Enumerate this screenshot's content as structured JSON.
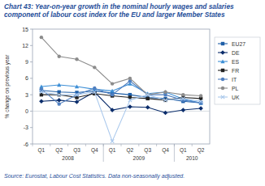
{
  "chart_data": {
    "type": "line",
    "title": "Chart 43: Year-on-year growth in the nominal hourly wages and salaries component of labour cost index for the EU and larger Member States",
    "source": "Source: Eurostat, Labour Cost Statistics. Data non-seasonally adjusted.",
    "y_label": "% change on previous year",
    "categories": [
      "Q1",
      "Q2",
      "Q3",
      "Q4",
      "Q1",
      "Q2",
      "Q3",
      "Q4",
      "Q1",
      "Q2"
    ],
    "x_group_labels": [
      "2008",
      "2009",
      "2010"
    ],
    "ylim": [
      -6,
      15
    ],
    "yticks": [
      -6,
      -3,
      0,
      3,
      6,
      9,
      12,
      15
    ],
    "legend": "right",
    "series": [
      {
        "name": "EU27",
        "color": "#1f5fa8",
        "marker": "square",
        "values": [
          3.8,
          3.5,
          3.4,
          3.7,
          3.3,
          3.0,
          2.5,
          2.3,
          1.8,
          1.5
        ]
      },
      {
        "name": "DE",
        "color": "#0b2d6b",
        "marker": "diamond",
        "values": [
          1.8,
          2.0,
          1.7,
          3.5,
          0.2,
          0.8,
          0.7,
          -0.3,
          0.2,
          0.5
        ]
      },
      {
        "name": "ES",
        "color": "#3d8fd6",
        "marker": "triangle",
        "values": [
          4.5,
          4.8,
          4.5,
          4.0,
          3.7,
          5.0,
          3.2,
          3.5,
          2.2,
          1.5
        ]
      },
      {
        "name": "FR",
        "color": "#222222",
        "marker": "square",
        "values": [
          3.0,
          3.0,
          2.5,
          3.2,
          2.8,
          2.5,
          2.3,
          2.0,
          2.5,
          2.3
        ]
      },
      {
        "name": "IT",
        "color": "#4f7fc0",
        "marker": "circle",
        "values": [
          4.0,
          1.3,
          3.0,
          4.2,
          3.0,
          5.5,
          3.0,
          3.0,
          2.0,
          1.5
        ]
      },
      {
        "name": "PL",
        "color": "#8c8c8c",
        "marker": "circle",
        "values": [
          13.5,
          10.0,
          9.5,
          8.0,
          5.0,
          6.0,
          3.0,
          3.5,
          3.0,
          2.8
        ]
      },
      {
        "name": "UK",
        "color": "#a9c8ec",
        "marker": "cross",
        "values": [
          3.5,
          3.0,
          3.0,
          3.5,
          -5.5,
          2.0,
          3.0,
          2.0,
          2.3,
          1.8
        ]
      }
    ]
  }
}
